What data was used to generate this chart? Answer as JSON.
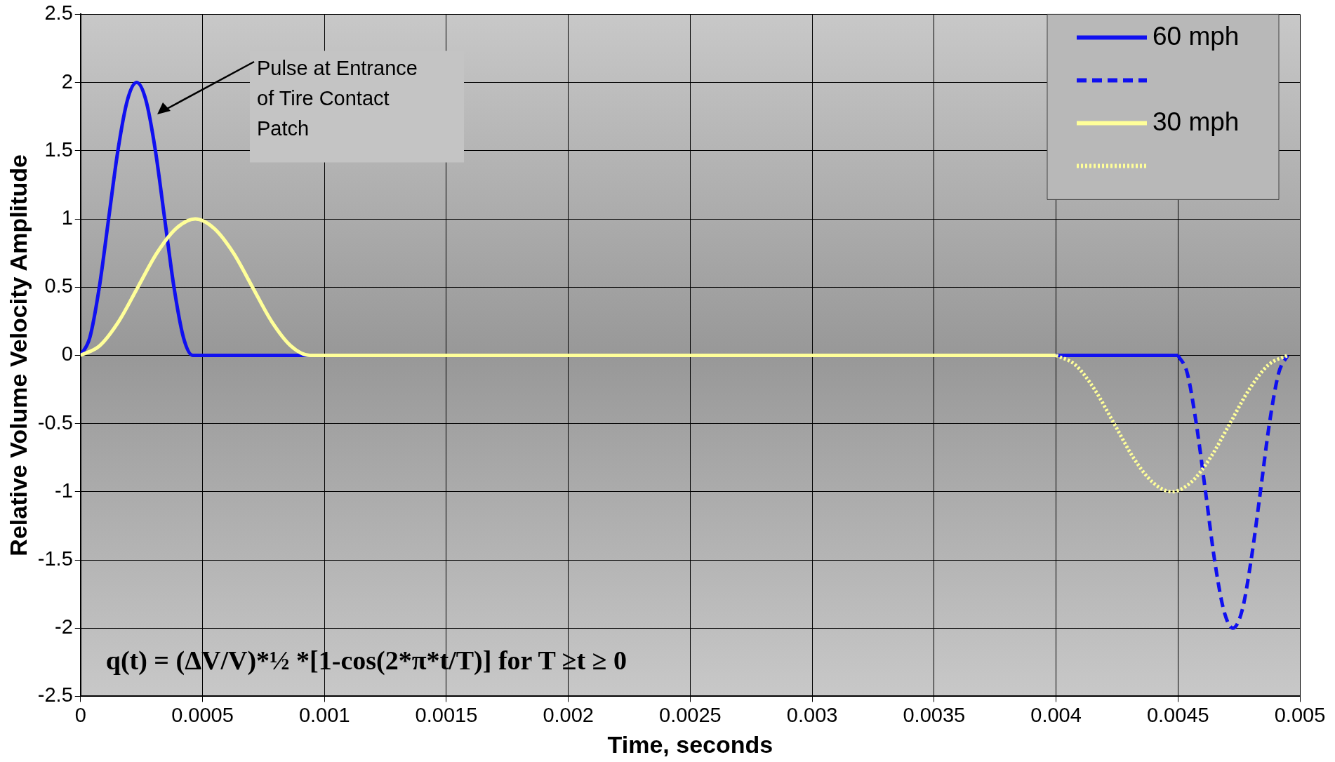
{
  "chart_data": {
    "type": "line",
    "xlabel": "Time, seconds",
    "ylabel": "Relative Volume Velocity Amplitude",
    "xlim": [
      0,
      0.005
    ],
    "xticks": [
      0,
      0.0005,
      0.001,
      0.0015,
      0.002,
      0.0025,
      0.003,
      0.0035,
      0.004,
      0.0045,
      0.005
    ],
    "ylim": [
      -2.5,
      2.5
    ],
    "yticks": [
      -2.5,
      -2,
      -1.5,
      -1,
      -0.5,
      0,
      0.5,
      1,
      1.5,
      2,
      2.5
    ],
    "grid": true,
    "legend": "top right",
    "marker": "none",
    "series": [
      {
        "name": "60 mph",
        "color": "#1010f0",
        "line_style": "solid",
        "x": [
          0,
          3.8e-05,
          7.7e-05,
          0.000115,
          0.000153,
          0.000192,
          0.00023,
          0.000268,
          0.000307,
          0.000345,
          0.000383,
          0.000422,
          0.00046,
          0.0045
        ],
        "values": [
          0,
          0.13,
          0.5,
          1,
          1.5,
          1.87,
          2,
          1.87,
          1.5,
          1,
          0.5,
          0.13,
          0,
          0
        ]
      },
      {
        "color": "#1010f0",
        "line_style": "dashed",
        "x": [
          0.0045,
          0.004538,
          0.004575,
          0.004613,
          0.00465,
          0.004688,
          0.004725,
          0.004763,
          0.0048,
          0.004838,
          0.004875,
          0.004913,
          0.00495
        ],
        "values": [
          0,
          -0.13,
          -0.5,
          -1,
          -1.5,
          -1.87,
          -2,
          -1.87,
          -1.5,
          -1,
          -0.5,
          -0.13,
          0
        ]
      },
      {
        "name": "30 mph",
        "color": "#ffff99",
        "line_style": "solid",
        "x": [
          0,
          7.8e-05,
          0.000157,
          0.000235,
          0.000313,
          0.000392,
          0.00047,
          0.000548,
          0.000627,
          0.000705,
          0.000783,
          0.000862,
          0.00094,
          0.004
        ],
        "values": [
          0,
          0.07,
          0.25,
          0.5,
          0.75,
          0.93,
          1,
          0.93,
          0.75,
          0.5,
          0.25,
          0.07,
          0,
          0
        ]
      },
      {
        "color": "#ffff99",
        "line_style": "dotted",
        "x": [
          0.004,
          0.004079,
          0.004158,
          0.004238,
          0.004317,
          0.004396,
          0.004475,
          0.004554,
          0.004633,
          0.004713,
          0.004792,
          0.004871,
          0.00495
        ],
        "values": [
          0,
          -0.07,
          -0.25,
          -0.5,
          -0.75,
          -0.93,
          -1,
          -0.93,
          -0.75,
          -0.5,
          -0.25,
          -0.07,
          0
        ]
      }
    ],
    "annotations": [
      "Pulse at Entrance of Tire Contact Patch",
      "q(t) = (ΔV/V)*½ *[1-cos(2*π*t/T)] for T ≥t ≥ 0"
    ]
  }
}
